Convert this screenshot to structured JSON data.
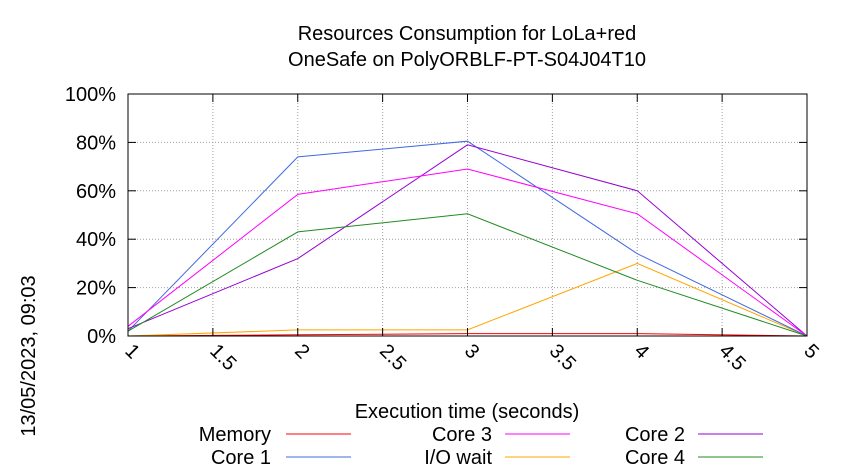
{
  "chart_data": {
    "type": "line",
    "title_line1": "Resources Consumption for LoLa+red",
    "title_line2": "OneSafe on PolyORBLF-PT-S04J04T10",
    "xlabel": "Execution time (seconds)",
    "ylabel": "",
    "side_label": "13/05/2023, 09:03",
    "xlim": [
      1,
      5
    ],
    "ylim": [
      0,
      100
    ],
    "x_ticks": [
      1,
      1.5,
      2,
      2.5,
      3,
      3.5,
      4,
      4.5,
      5
    ],
    "x_tick_labels": [
      "1",
      "1.5",
      "2",
      "2.5",
      "3",
      "3.5",
      "4",
      "4.5",
      "5"
    ],
    "y_ticks": [
      0,
      20,
      40,
      60,
      80,
      100
    ],
    "y_tick_labels": [
      "0%",
      "20%",
      "40%",
      "60%",
      "80%",
      "100%"
    ],
    "grid": true,
    "legend_placement": "bottom",
    "series": [
      {
        "name": "Memory",
        "color": "#ff0000",
        "x": [
          1,
          2,
          3,
          4,
          5
        ],
        "y": [
          0,
          0.5,
          1,
          1,
          0
        ]
      },
      {
        "name": "I/O wait",
        "color": "#ffa500",
        "x": [
          1,
          2,
          3,
          4,
          5
        ],
        "y": [
          0,
          2.5,
          2.5,
          30,
          0
        ]
      },
      {
        "name": "Core 1",
        "color": "#4169e1",
        "x": [
          1,
          2,
          3,
          4,
          5
        ],
        "y": [
          2,
          74,
          80.5,
          34,
          0
        ]
      },
      {
        "name": "Core 2",
        "color": "#9400d3",
        "x": [
          1,
          2,
          3,
          4,
          5
        ],
        "y": [
          3,
          32,
          79,
          60,
          0
        ]
      },
      {
        "name": "Core 3",
        "color": "#ff00ff",
        "x": [
          1,
          2,
          3,
          4,
          5
        ],
        "y": [
          4,
          58.5,
          69,
          50.5,
          0
        ]
      },
      {
        "name": "Core 4",
        "color": "#228b22",
        "x": [
          1,
          2,
          3,
          4,
          5
        ],
        "y": [
          2,
          43,
          50.5,
          23,
          0
        ]
      }
    ],
    "legend_order": [
      0,
      2,
      4,
      1,
      3,
      5
    ]
  }
}
